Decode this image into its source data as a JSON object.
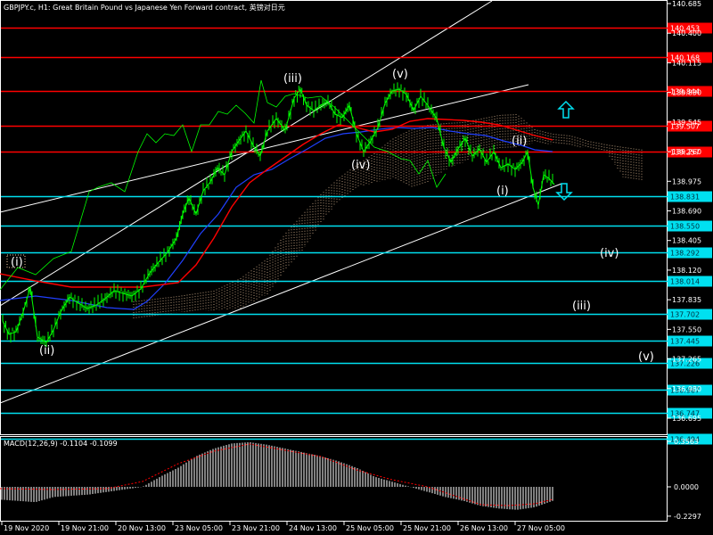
{
  "chart_title": "GBPJPY.c, H1:  Great Britain Pound vs Japanese Yen Forward contract, 英镑对日元",
  "price_axis": {
    "labels": [
      "140.685",
      "140.400",
      "140.115",
      "139.830",
      "139.545",
      "139.260",
      "138.975",
      "138.690",
      "138.405",
      "138.120",
      "137.835",
      "137.550",
      "137.265",
      "136.980",
      "136.695"
    ],
    "range": [
      136.55,
      140.75
    ]
  },
  "horizontal_lines": [
    {
      "price": 140.453,
      "label": "140.453",
      "color": "#ff0000"
    },
    {
      "price": 140.168,
      "label": "140.168",
      "color": "#ff0000"
    },
    {
      "price": 139.844,
      "label": "139.844",
      "color": "#ff0000"
    },
    {
      "price": 139.507,
      "label": "139.507",
      "color": "#ff0000"
    },
    {
      "price": 139.257,
      "label": "139.257",
      "color": "#ff0000"
    },
    {
      "price": 138.831,
      "label": "138.831",
      "color": "#00e0f0"
    },
    {
      "price": 138.55,
      "label": "138.550",
      "color": "#00e0f0"
    },
    {
      "price": 138.292,
      "label": "138.292",
      "color": "#00e0f0"
    },
    {
      "price": 138.014,
      "label": "138.014",
      "color": "#00e0f0"
    },
    {
      "price": 137.702,
      "label": "137.702",
      "color": "#00e0f0"
    },
    {
      "price": 137.445,
      "label": "137.445",
      "color": "#00e0f0"
    },
    {
      "price": 137.226,
      "label": "137.226",
      "color": "#00e0f0"
    },
    {
      "price": 136.967,
      "label": "136.967",
      "color": "#00e0f0"
    },
    {
      "price": 136.747,
      "label": "136.747",
      "color": "#00e0f0"
    },
    {
      "price": 136.494,
      "label": "136.494",
      "color": "#00e0f0"
    }
  ],
  "wave_labels": [
    "(i)",
    "(ii)",
    "(iii)",
    "(iv)",
    "(v)",
    "(i)",
    "(ii)",
    "(iv)",
    "(iii)",
    "(v)"
  ],
  "time_axis": [
    "19 Nov 2020",
    "19 Nov 21:00",
    "20 Nov 13:00",
    "23 Nov 05:00",
    "23 Nov 21:00",
    "24 Nov 13:00",
    "25 Nov 05:00",
    "25 Nov 21:00",
    "26 Nov 13:00",
    "27 Nov 05:00"
  ],
  "macd": {
    "title": "MACD(12,26,9) -0.1104 -0.1099",
    "axis_labels": [
      "0.3563",
      "0.0000",
      "-0.2297"
    ],
    "range": [
      -0.25,
      0.37
    ]
  },
  "colors": {
    "background": "#000000",
    "candles": "#00ff00",
    "resistance": "#ff0000",
    "support": "#00e0f0",
    "ma_red": "#ff0000",
    "ma_blue": "#2040ff",
    "channel": "#ffffff",
    "cloud": "#f0c8a0",
    "arrows": "#00e0f0"
  },
  "chart_data": {
    "type": "line",
    "title": "GBPJPY.c, H1:  Great Britain Pound vs Japanese Yen Forward contract, 英镑对日元",
    "x": [
      "19 Nov 2020",
      "19 Nov 21:00",
      "20 Nov 13:00",
      "23 Nov 05:00",
      "23 Nov 21:00",
      "24 Nov 13:00",
      "25 Nov 05:00",
      "25 Nov 21:00",
      "26 Nov 13:00",
      "27 Nov 05:00"
    ],
    "series": [
      {
        "values": [
          137.45,
          137.7,
          137.75,
          138.7,
          139.75,
          139.55,
          139.6,
          139.45,
          139.0,
          138.83
        ]
      }
    ],
    "ylim": [
      136.55,
      140.75
    ],
    "grid": false
  }
}
